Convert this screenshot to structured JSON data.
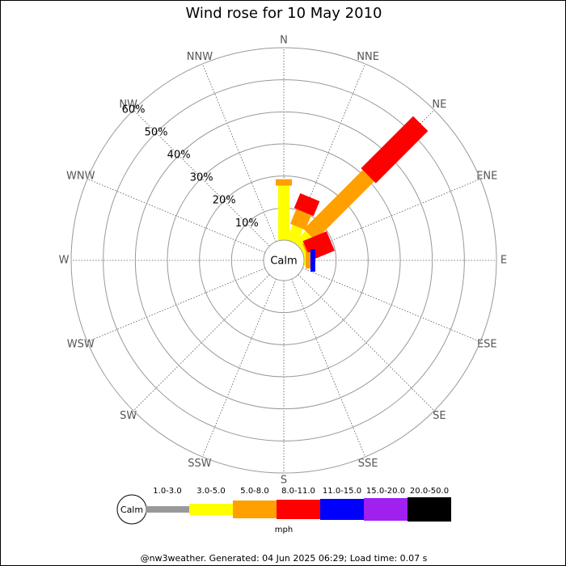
{
  "chart_data": {
    "type": "wind_rose",
    "title": "Wind rose for 10 May 2010",
    "calm_label": "Calm",
    "legend_unit": "mph",
    "directions": [
      "N",
      "NNE",
      "NE",
      "ENE",
      "E",
      "ESE",
      "SE",
      "SSE",
      "S",
      "SSW",
      "SW",
      "WSW",
      "W",
      "WNW",
      "NW",
      "NNW"
    ],
    "series": [
      {
        "name": "1.0-3.0",
        "color": "#999999",
        "values": [
          0,
          0,
          0,
          0,
          0,
          0,
          0,
          0,
          0,
          0,
          0,
          0,
          0,
          0,
          0,
          0
        ]
      },
      {
        "name": "3.0-5.0",
        "color": "#ffff00",
        "values": [
          17,
          5,
          5,
          1,
          0.5,
          0,
          0,
          0,
          0,
          0,
          0,
          0,
          0,
          0,
          0,
          0
        ]
      },
      {
        "name": "5.0-8.0",
        "color": "#ff9f00",
        "values": [
          2,
          5,
          26,
          0.5,
          1.5,
          0,
          0,
          0,
          0,
          0,
          0,
          0,
          0,
          0,
          0,
          0
        ]
      },
      {
        "name": "8.0-11.0",
        "color": "#ff0000",
        "values": [
          0,
          5,
          23,
          8,
          0,
          0,
          0,
          0,
          0,
          0,
          0,
          0,
          0,
          0,
          0,
          0
        ]
      },
      {
        "name": "11.0-15.0",
        "color": "#0000ff",
        "values": [
          0,
          0,
          0,
          0,
          1.5,
          0,
          0,
          0,
          0,
          0,
          0,
          0,
          0,
          0,
          0,
          0
        ]
      },
      {
        "name": "15.0-20.0",
        "color": "#a020f0",
        "values": [
          0,
          0,
          0,
          0,
          0,
          0,
          0,
          0,
          0,
          0,
          0,
          0,
          0,
          0,
          0,
          0
        ]
      },
      {
        "name": "20.0-50.0",
        "color": "#000000",
        "values": [
          0,
          0,
          0,
          0,
          0,
          0,
          0,
          0,
          0,
          0,
          0,
          0,
          0,
          0,
          0,
          0
        ]
      }
    ],
    "rlim": [
      0,
      60
    ],
    "rticks": [
      {
        "value": 10,
        "label": "10%"
      },
      {
        "value": 20,
        "label": "20%"
      },
      {
        "value": 30,
        "label": "30%"
      },
      {
        "value": 40,
        "label": "40%"
      },
      {
        "value": 50,
        "label": "50%"
      },
      {
        "value": 60,
        "label": "60%"
      }
    ]
  },
  "footer": "@nw3weather. Generated: 04 Jun 2025 06:29; Load time: 0.07 s"
}
